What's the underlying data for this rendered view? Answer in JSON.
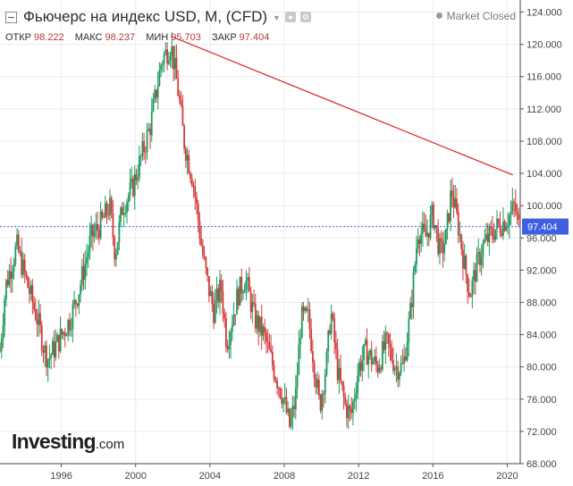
{
  "header": {
    "title": "Фьючерс на индекс USD, M, (CFD)",
    "status": "Market Closed",
    "ohlc": [
      {
        "label": "ОТКР",
        "value": "98.222"
      },
      {
        "label": "МАКС",
        "value": "98.237"
      },
      {
        "label": "МИН",
        "value": "95.703"
      },
      {
        "label": "ЗАКР",
        "value": "97.404"
      }
    ]
  },
  "logo": {
    "main": "Investing",
    "domain": ".com"
  },
  "colors": {
    "up": "#1e9a5d",
    "down": "#d23b3b",
    "trendline": "#e02020",
    "price_line": "#3d5fe0",
    "price_badge": "#3d5fe0"
  },
  "chart_data": {
    "type": "candlestick",
    "timeframe": "monthly",
    "x_ticks": [
      "1996",
      "2000",
      "2004",
      "2008",
      "2012",
      "2016",
      "2020"
    ],
    "y_ticks": [
      "68.000",
      "72.000",
      "76.000",
      "80.000",
      "84.000",
      "88.000",
      "92.000",
      "96.000",
      "100.000",
      "104.000",
      "108.000",
      "112.000",
      "116.000",
      "120.000",
      "124.000"
    ],
    "ylim": [
      68,
      125.5
    ],
    "xlim": [
      1992.7,
      2020.7
    ],
    "current_price": {
      "label": "97.404",
      "value": 97.404
    },
    "trendline": [
      {
        "x": 2001.9,
        "y": 121.0
      },
      {
        "x": 2020.3,
        "y": 103.8
      }
    ],
    "anchors": [
      [
        1992.7,
        82.0
      ],
      [
        1993.0,
        90.0
      ],
      [
        1993.6,
        95.0
      ],
      [
        1994.2,
        90.0
      ],
      [
        1994.7,
        86.0
      ],
      [
        1995.1,
        82.0
      ],
      [
        1995.3,
        81.0
      ],
      [
        1995.8,
        83.0
      ],
      [
        1996.5,
        86.0
      ],
      [
        1997.0,
        90.0
      ],
      [
        1997.6,
        96.0
      ],
      [
        1998.2,
        98.0
      ],
      [
        1998.6,
        100.0
      ],
      [
        1998.9,
        94.0
      ],
      [
        1999.3,
        100.0
      ],
      [
        1999.8,
        102.0
      ],
      [
        2000.3,
        106.0
      ],
      [
        2000.8,
        110.0
      ],
      [
        2001.4,
        118.0
      ],
      [
        2001.9,
        120.0
      ],
      [
        2002.3,
        114.0
      ],
      [
        2002.6,
        108.0
      ],
      [
        2003.1,
        103.0
      ],
      [
        2003.6,
        94.0
      ],
      [
        2003.9,
        90.0
      ],
      [
        2004.2,
        87.0
      ],
      [
        2004.6,
        90.0
      ],
      [
        2004.9,
        83.0
      ],
      [
        2005.5,
        89.0
      ],
      [
        2005.9,
        91.0
      ],
      [
        2006.4,
        86.0
      ],
      [
        2006.9,
        84.0
      ],
      [
        2007.4,
        80.0
      ],
      [
        2007.9,
        76.5
      ],
      [
        2008.3,
        72.5
      ],
      [
        2008.6,
        76.0
      ],
      [
        2008.9,
        86.0
      ],
      [
        2009.3,
        86.0
      ],
      [
        2009.9,
        75.0
      ],
      [
        2010.3,
        81.0
      ],
      [
        2010.5,
        87.0
      ],
      [
        2010.9,
        79.0
      ],
      [
        2011.3,
        75.0
      ],
      [
        2011.6,
        74.0
      ],
      [
        2012.0,
        80.0
      ],
      [
        2012.4,
        82.0
      ],
      [
        2013.0,
        80.0
      ],
      [
        2013.5,
        83.0
      ],
      [
        2014.0,
        80.0
      ],
      [
        2014.4,
        80.0
      ],
      [
        2014.8,
        87.0
      ],
      [
        2015.2,
        97.0
      ],
      [
        2015.6,
        96.0
      ],
      [
        2016.0,
        99.0
      ],
      [
        2016.4,
        94.0
      ],
      [
        2016.7,
        96.0
      ],
      [
        2017.0,
        102.0
      ],
      [
        2017.4,
        97.0
      ],
      [
        2017.7,
        92.5
      ],
      [
        2018.0,
        89.0
      ],
      [
        2018.3,
        92.0
      ],
      [
        2018.7,
        95.0
      ],
      [
        2019.3,
        97.0
      ],
      [
        2019.8,
        98.0
      ],
      [
        2020.2,
        99.0
      ],
      [
        2020.4,
        100.0
      ],
      [
        2020.6,
        97.4
      ]
    ]
  }
}
